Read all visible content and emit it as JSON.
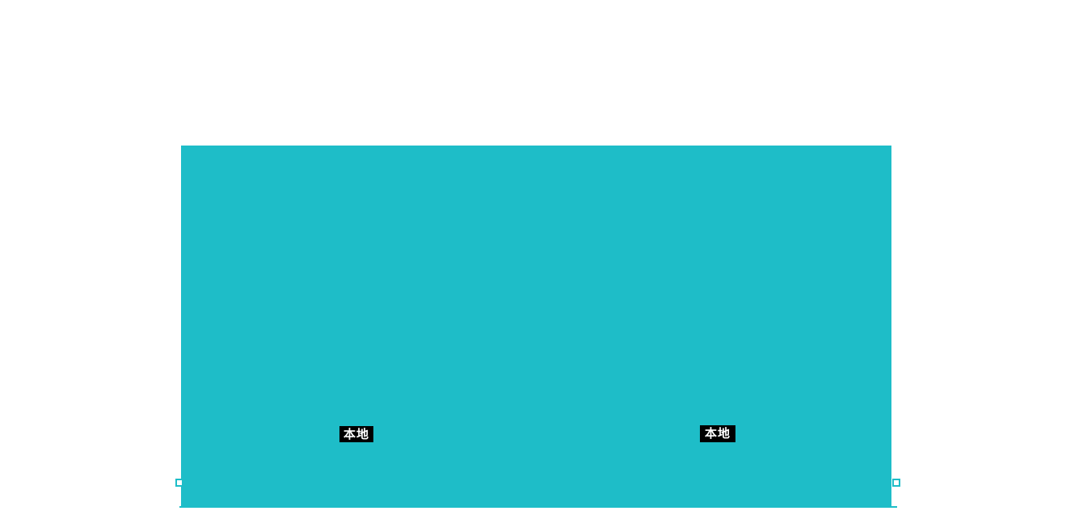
{
  "colors": {
    "background": "#ffffff",
    "shape_fill": "#1ebdc8",
    "label_background": "#000000",
    "label_text": "#ffffff"
  },
  "canvas": {
    "shape": {
      "type": "rectangle",
      "fill": "#1ebdc8"
    },
    "panels": [
      {
        "label": "本地"
      },
      {
        "label": "本地"
      }
    ],
    "selection": {
      "left_handle": "square-endpoint-handle",
      "right_handle": "square-endpoint-handle"
    }
  }
}
